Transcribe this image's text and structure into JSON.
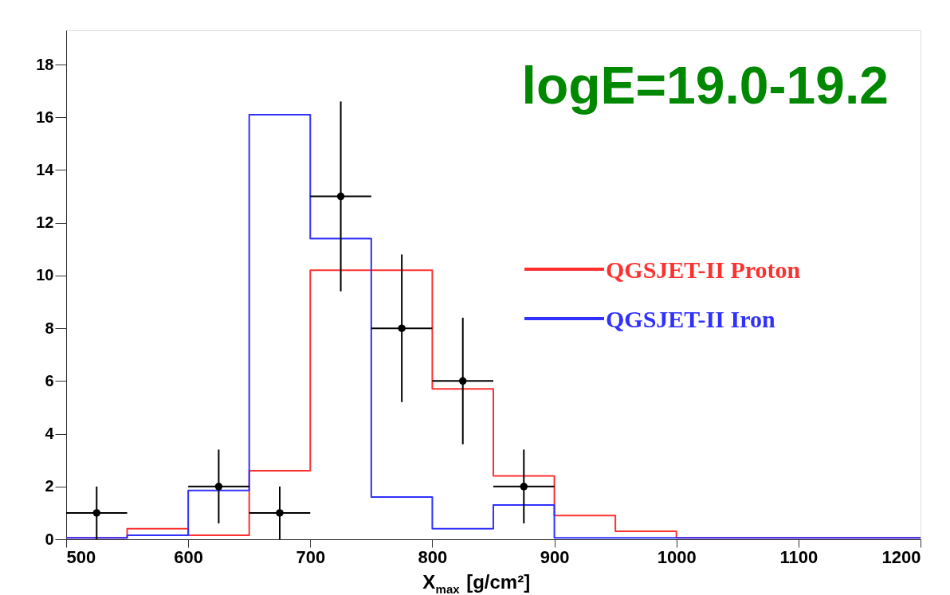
{
  "chart_data": {
    "type": "histogram",
    "xlabel": "X$_{max}$ [g/cm²]",
    "bins": [
      500,
      550,
      600,
      650,
      700,
      750,
      800,
      850,
      900,
      950,
      1000,
      1050,
      1100,
      1150,
      1200
    ],
    "xlim": [
      500,
      1200
    ],
    "xticks": [
      500,
      600,
      700,
      800,
      900,
      1000,
      1100,
      1200
    ],
    "ylim": [
      0,
      19.3
    ],
    "yticks": [
      0,
      2,
      4,
      6,
      8,
      10,
      12,
      14,
      16,
      18
    ],
    "series": [
      {
        "name": "QGSJET-II Proton",
        "color": "#ff3030",
        "values": [
          0.05,
          0.4,
          0.15,
          2.6,
          10.2,
          10.2,
          5.7,
          2.4,
          0.9,
          0.3,
          0.05,
          0.05,
          0.05,
          0.05
        ]
      },
      {
        "name": "QGSJET-II Iron",
        "color": "#3030ff",
        "values": [
          0.05,
          0.15,
          1.85,
          16.1,
          11.4,
          1.6,
          0.4,
          1.3,
          0.05,
          0.05,
          0.05,
          0.05,
          0.05,
          0.05
        ]
      },
      {
        "type": "scatter",
        "color": "#000000",
        "x": [
          525,
          625,
          675,
          725,
          775,
          825,
          875
        ],
        "values": [
          1,
          2,
          1,
          13,
          8,
          6,
          2
        ],
        "errors": [
          1,
          1.4,
          1,
          3.6,
          2.8,
          2.4,
          1.4
        ],
        "xerrors": [
          25,
          25,
          25,
          25,
          25,
          25,
          25
        ]
      }
    ],
    "annotations": [
      "logE=19.0-19.2"
    ],
    "legend": "right",
    "marker": "circle",
    "grid": false
  }
}
